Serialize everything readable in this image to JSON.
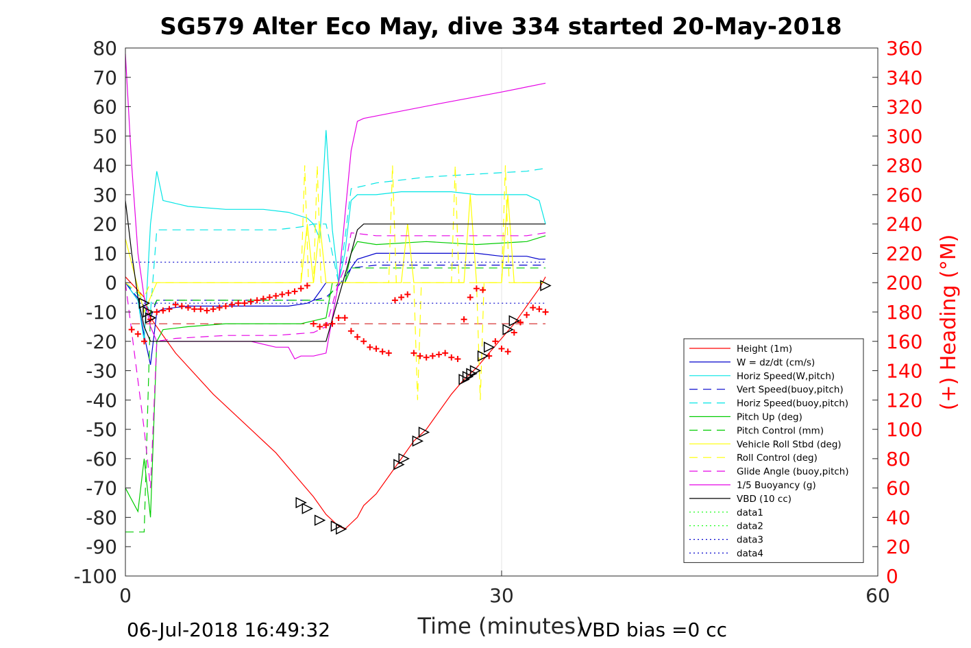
{
  "chart_data": {
    "type": "line",
    "title": "SG579 Alter Eco May, dive 334 started 20-May-2018",
    "xlabel": "Time (minutes)",
    "ylabel": "",
    "y2label": "(+) Heading (°M)",
    "xlim": [
      0,
      60
    ],
    "ylim": [
      -100,
      80
    ],
    "y2lim": [
      0,
      360
    ],
    "xticks": [
      "0",
      "30",
      "60"
    ],
    "yticks": [
      "80",
      "70",
      "60",
      "50",
      "40",
      "30",
      "20",
      "10",
      "0",
      "-10",
      "-20",
      "-30",
      "-40",
      "-50",
      "-60",
      "-70",
      "-80",
      "-90",
      "-100"
    ],
    "y2ticks": [
      "360",
      "340",
      "320",
      "300",
      "280",
      "260",
      "240",
      "220",
      "200",
      "180",
      "160",
      "140",
      "120",
      "100",
      "80",
      "60",
      "40",
      "20",
      "0"
    ],
    "grid": "x only",
    "legend_position": "right",
    "footer_left": "06-Jul-2018 16:49:32",
    "footer_right": "VBD bias =0 cc",
    "series": [
      {
        "name": "Height (1m)",
        "color": "#ff0000",
        "style": "solid",
        "x": [
          0,
          1.5,
          2,
          4,
          7,
          10,
          12,
          14,
          15,
          16,
          17,
          17.5,
          18,
          18.5,
          19,
          20,
          21,
          22,
          23,
          24,
          25,
          26,
          27,
          28,
          29,
          30,
          31,
          32,
          33,
          33.5
        ],
        "y": [
          2,
          -5,
          -12,
          -24,
          -38,
          -50,
          -58,
          -68,
          -73,
          -79,
          -83,
          -84,
          -82,
          -80,
          -76,
          -72,
          -66,
          -60,
          -54,
          -50,
          -44,
          -38,
          -33,
          -29,
          -24,
          -19,
          -14,
          -8,
          -2,
          2
        ]
      },
      {
        "name": "W = dz/dt (cm/s)",
        "color": "#0000cc",
        "style": "solid",
        "x": [
          0,
          1,
          1.5,
          2,
          2.5,
          3,
          5,
          8,
          11,
          13,
          14.5,
          15,
          15.5,
          16,
          17,
          17.5,
          18,
          18.5,
          20,
          22,
          24,
          26,
          28,
          30,
          32,
          33,
          33.5
        ],
        "y": [
          0,
          -6,
          -18,
          -28,
          -10,
          -9,
          -8,
          -8,
          -8,
          -8,
          -7,
          -6,
          -3,
          0,
          0,
          0,
          5,
          8,
          10,
          10,
          10,
          10,
          10,
          9,
          9,
          8,
          8
        ]
      },
      {
        "name": "Horiz Speed(W,pitch)",
        "color": "#00e5e5",
        "style": "solid",
        "x": [
          0,
          1,
          1.5,
          2,
          2.5,
          3,
          5,
          8,
          11,
          13,
          14.5,
          15,
          15.5,
          16,
          16.5,
          17,
          17.5,
          18,
          18.5,
          20,
          22,
          24,
          26,
          28,
          30,
          32,
          33,
          33.5
        ],
        "y": [
          0,
          -6,
          -20,
          20,
          38,
          28,
          26,
          25,
          25,
          24,
          22,
          20,
          15,
          52,
          18,
          0,
          10,
          28,
          30,
          30,
          31,
          31,
          31,
          30,
          30,
          30,
          28,
          20
        ]
      },
      {
        "name": "Vert Speed(buoy,pitch)",
        "color": "#0000cc",
        "style": "dashed",
        "x": [
          0,
          1.5,
          2,
          2.5,
          4,
          8,
          12,
          15,
          16,
          17,
          17.5,
          18,
          20,
          24,
          28,
          32,
          33.5
        ],
        "y": [
          0,
          -8,
          -12,
          -6,
          -6,
          -6,
          -6,
          -6,
          -5,
          -1,
          2,
          5,
          6,
          6,
          6,
          6,
          6
        ]
      },
      {
        "name": "Horiz Speed(buoy,pitch)",
        "color": "#00e5e5",
        "style": "dashed",
        "x": [
          0,
          1.5,
          2,
          2.5,
          4,
          8,
          10,
          12,
          14,
          15,
          16,
          17,
          17.5,
          18,
          20,
          24,
          28,
          32,
          33.5
        ],
        "y": [
          0,
          -6,
          -10,
          18,
          18,
          18,
          18,
          18,
          19,
          20,
          20,
          0,
          15,
          32,
          34,
          36,
          37,
          38,
          39
        ]
      },
      {
        "name": "Pitch Up (deg)",
        "color": "#00cc00",
        "style": "solid",
        "x": [
          0,
          1,
          1.5,
          2,
          2.5,
          3,
          5,
          8,
          11,
          14,
          15,
          16,
          16.5,
          17,
          17.5,
          18,
          18.5,
          20,
          24,
          28,
          32,
          33.5
        ],
        "y": [
          -70,
          -78,
          -60,
          -80,
          -20,
          -16,
          -15,
          -14,
          -14,
          -14,
          -13,
          -12,
          0,
          0,
          0,
          10,
          14,
          13,
          14,
          13,
          14,
          16
        ]
      },
      {
        "name": "Pitch Control (mm)",
        "color": "#00cc00",
        "style": "dashed",
        "x": [
          0,
          1,
          1.5,
          2,
          2.5,
          4,
          8,
          12,
          15,
          16,
          16.5,
          17,
          17.5,
          18,
          20,
          24,
          28,
          32,
          33.5
        ],
        "y": [
          -85,
          -85,
          -85,
          -10,
          -6,
          -6,
          -6,
          -6,
          -6,
          -6,
          -3,
          0,
          0,
          5,
          5,
          5,
          5,
          5,
          5
        ]
      },
      {
        "name": "Vehicle Roll Stbd (deg)",
        "color": "#ffff00",
        "style": "solid",
        "x": [
          0,
          1.5,
          2,
          2.5,
          4,
          8,
          12,
          14,
          14.5,
          15,
          15.5,
          16,
          16.5,
          17,
          17.5,
          18,
          20,
          22,
          22.5,
          23,
          24,
          26,
          27,
          27.5,
          28,
          29,
          30,
          30.5,
          31,
          32,
          33,
          33.5
        ],
        "y": [
          15,
          -10,
          -5,
          0,
          0,
          0,
          0,
          0,
          20,
          0,
          20,
          0,
          0,
          0,
          0,
          0,
          0,
          0,
          20,
          0,
          0,
          0,
          0,
          30,
          0,
          0,
          0,
          30,
          0,
          0,
          0,
          0
        ]
      },
      {
        "name": "Roll Control (deg)",
        "color": "#ffff00",
        "style": "dashed",
        "x": [
          0,
          1.5,
          2,
          4,
          8,
          12,
          14,
          14.3,
          14.6,
          15,
          15.3,
          15.6,
          16,
          17,
          18,
          21,
          21.3,
          21.6,
          22,
          23,
          23.3,
          23.6,
          26,
          26.3,
          26.6,
          28,
          28.3,
          28.6,
          30,
          30.3,
          30.6,
          33.5
        ],
        "y": [
          0,
          -5,
          0,
          0,
          0,
          0,
          0,
          40,
          0,
          0,
          40,
          0,
          0,
          0,
          0,
          0,
          40,
          0,
          0,
          0,
          -40,
          0,
          0,
          40,
          0,
          0,
          -40,
          0,
          0,
          40,
          0,
          0
        ]
      },
      {
        "name": "Glide Angle (buoy,pitch)",
        "color": "#e500e5",
        "style": "dashed",
        "x": [
          0,
          1.5,
          2,
          2.5,
          4,
          8,
          12,
          15,
          16,
          17,
          17.5,
          18,
          20,
          24,
          28,
          32,
          33.5
        ],
        "y": [
          0,
          -50,
          -70,
          -20,
          -19,
          -18,
          -18,
          -17,
          -15,
          0,
          5,
          17,
          16,
          16,
          16,
          16,
          17
        ]
      },
      {
        "name": "1/5 Buoyancy (g)",
        "color": "#e500e5",
        "style": "solid",
        "x": [
          0,
          0.5,
          1,
          1.5,
          2,
          2.5,
          5,
          8,
          10,
          12,
          13,
          13.5,
          14,
          15,
          16,
          17,
          18,
          18.5,
          19,
          25,
          30,
          33.5
        ],
        "y": [
          78,
          40,
          10,
          -5,
          -15,
          -20,
          -20,
          -20,
          -20,
          -22,
          -22,
          -26,
          -25,
          -25,
          -24,
          0,
          45,
          55,
          56,
          61,
          65,
          68
        ]
      },
      {
        "name": "VBD (10 cc)",
        "color": "#000000",
        "style": "solid",
        "x": [
          0,
          0.5,
          1,
          1.5,
          2,
          3,
          6,
          10,
          13,
          15,
          15.5,
          16,
          17,
          18,
          18.5,
          19,
          25,
          30,
          33,
          33.5
        ],
        "y": [
          28,
          10,
          -5,
          -15,
          -20,
          -20,
          -20,
          -20,
          -20,
          -20,
          -20,
          -20,
          -5,
          10,
          18,
          20,
          20,
          20,
          20,
          20
        ]
      },
      {
        "name": "data1",
        "color": "#00ff00",
        "style": "dotted",
        "x": [],
        "y": []
      },
      {
        "name": "data2",
        "color": "#00ff00",
        "style": "dotted",
        "x": [],
        "y": []
      },
      {
        "name": "data3",
        "color": "#0000cc",
        "style": "dotted",
        "x": [
          0.5,
          33.5
        ],
        "y": [
          7,
          7
        ]
      },
      {
        "name": "data4",
        "color": "#0000cc",
        "style": "dotted",
        "x": [
          0.5,
          33.5
        ],
        "y": [
          -7,
          -7
        ]
      }
    ],
    "heading_markers": {
      "axis": "right",
      "color": "#ff0000",
      "marker": "+",
      "x": [
        0.5,
        1,
        1.5,
        2,
        2.5,
        3,
        3.5,
        4,
        4.5,
        5,
        5.5,
        6,
        6.5,
        7,
        7.5,
        8,
        8.5,
        9,
        9.5,
        10,
        10.5,
        11,
        11.5,
        12,
        12.5,
        13,
        13.5,
        14,
        14.5,
        15,
        15.5,
        16,
        16.5,
        17,
        17.5,
        18,
        18.5,
        19,
        19.5,
        20,
        20.5,
        21,
        21.5,
        22,
        22.5,
        23,
        23.5,
        24,
        24.5,
        25,
        25.5,
        26,
        26.5,
        27,
        27.5,
        28,
        28.5,
        29,
        29.5,
        30,
        30.5,
        31,
        31.5,
        32,
        32.5,
        33,
        33.5
      ],
      "y": [
        168,
        165,
        160,
        175,
        180,
        181,
        182,
        185,
        184,
        183,
        182,
        182,
        181,
        182,
        183,
        184,
        185,
        186,
        186,
        187,
        188,
        189,
        190,
        191,
        192,
        193,
        194,
        196,
        198,
        172,
        170,
        171,
        172,
        176,
        176,
        167,
        163,
        160,
        156,
        155,
        153,
        152,
        188,
        190,
        192,
        152,
        150,
        149,
        150,
        151,
        152,
        149,
        148,
        175,
        190,
        196,
        195,
        150,
        160,
        155,
        153,
        166,
        173,
        178,
        183,
        182,
        180
      ]
    },
    "reference_line": {
      "name": "",
      "color": "#cc0000",
      "style": "dashed",
      "y": -14,
      "x": [
        0.5,
        33.5
      ]
    },
    "triangle_markers": {
      "color": "#000000",
      "points": [
        [
          1.5,
          -7
        ],
        [
          1.8,
          -10
        ],
        [
          2,
          -12
        ],
        [
          14,
          -75
        ],
        [
          14.5,
          -77
        ],
        [
          15.5,
          -81
        ],
        [
          16.8,
          -83
        ],
        [
          17.2,
          -84
        ],
        [
          21.8,
          -62
        ],
        [
          22.2,
          -60
        ],
        [
          23.3,
          -54
        ],
        [
          23.8,
          -51
        ],
        [
          27,
          -33
        ],
        [
          27.3,
          -32
        ],
        [
          27.6,
          -31
        ],
        [
          27.9,
          -30
        ],
        [
          28.5,
          -25
        ],
        [
          29,
          -22
        ],
        [
          30.5,
          -16
        ],
        [
          31,
          -13
        ],
        [
          33.5,
          -1
        ]
      ]
    }
  }
}
